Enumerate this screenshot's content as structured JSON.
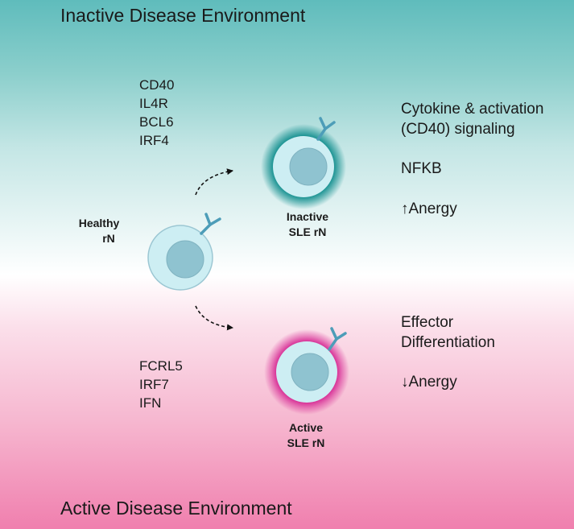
{
  "titles": {
    "inactive_env": "Inactive Disease Environment",
    "active_env": "Active Disease Environment"
  },
  "genes_inactive": [
    "CD40",
    "IL4R",
    "BCL6",
    "IRF4"
  ],
  "genes_active": [
    "FCRL5",
    "IRF7",
    "IFN"
  ],
  "cells": {
    "healthy": [
      "Healthy",
      "rN"
    ],
    "inactive": [
      "Inactive",
      "SLE rN"
    ],
    "active": [
      "Active",
      "SLE rN"
    ]
  },
  "notes_inactive": {
    "cytokine_line1": "Cytokine &  activation",
    "cytokine_line2": "(CD40) signaling",
    "nfkb": "NFKB",
    "anergy": "↑Anergy"
  },
  "notes_active": {
    "effector_line1": "Effector",
    "effector_line2": "Differentiation",
    "anergy": "↓Anergy"
  },
  "colors": {
    "top": "#5fbcbc",
    "bottom": "#f07fae",
    "cell_fill": "#cdeef3",
    "nucleus": "#8fc3d0",
    "inactive_glow": "#138f8f",
    "active_glow": "#d62a94",
    "antibody": "#4d9db8"
  }
}
